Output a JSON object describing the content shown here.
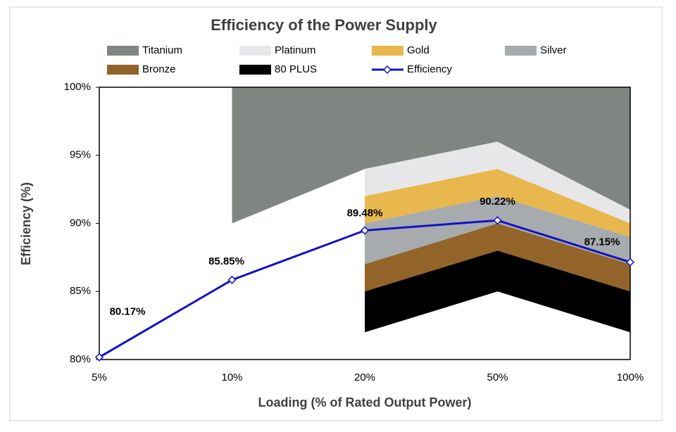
{
  "chart_data": {
    "type": "line",
    "title": "Efficiency of the Power Supply",
    "x_label": "Loading (% of Rated Output Power)",
    "y_label": "Efficiency (%)",
    "categories": [
      "5%",
      "10%",
      "20%",
      "50%",
      "100%"
    ],
    "ylim": [
      80,
      100
    ],
    "yticks": [
      {
        "value": 80,
        "label": "80%"
      },
      {
        "value": 85,
        "label": "85%"
      },
      {
        "value": 90,
        "label": "90%"
      },
      {
        "value": 95,
        "label": "95%"
      },
      {
        "value": 100,
        "label": "100%"
      }
    ],
    "bands": [
      {
        "name": "Titanium",
        "color": "#7f8580",
        "values": [
          null,
          90,
          94,
          96,
          91
        ]
      },
      {
        "name": "Platinum",
        "color": "#e7e7e9",
        "values": [
          null,
          null,
          92,
          94,
          90
        ]
      },
      {
        "name": "Gold",
        "color": "#e8b84e",
        "values": [
          null,
          null,
          90,
          92,
          89
        ]
      },
      {
        "name": "Silver",
        "color": "#a7abae",
        "values": [
          null,
          null,
          87,
          90,
          87
        ]
      },
      {
        "name": "Bronze",
        "color": "#93642a",
        "values": [
          null,
          null,
          85,
          88,
          85
        ]
      },
      {
        "name": "80 PLUS",
        "color": "#000000",
        "values": [
          null,
          null,
          82,
          85,
          82
        ]
      }
    ],
    "series": [
      {
        "name": "Efficiency",
        "color": "#1111c4",
        "values": [
          80.17,
          85.85,
          89.48,
          90.22,
          87.15
        ],
        "value_labels": [
          "80.17%",
          "85.85%",
          "89.48%",
          "90.22%",
          "87.15%"
        ]
      }
    ]
  }
}
